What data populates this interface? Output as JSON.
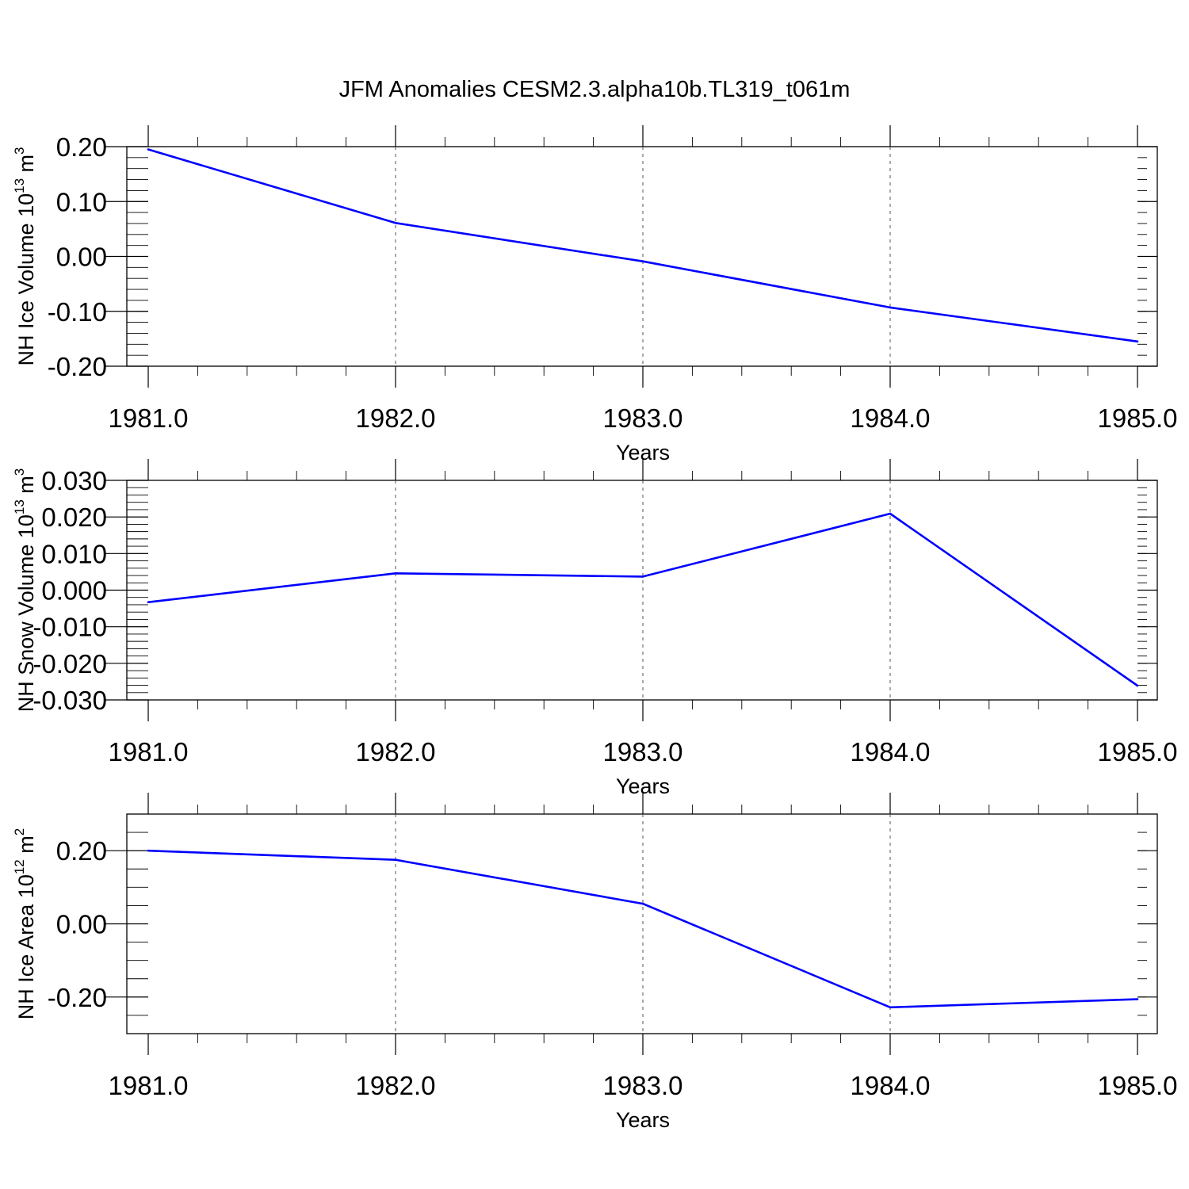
{
  "title": "JFM Anomalies CESM2.3.alpha10b.TL319_t061m",
  "chart_data": [
    {
      "type": "line",
      "xlabel": "Years",
      "ylabel": {
        "main": "NH Ice Volume 10",
        "exp": "13",
        "unit": " m",
        "unit_exp": "3"
      },
      "x": [
        1981.0,
        1982.0,
        1983.0,
        1984.0,
        1985.0
      ],
      "xlim": [
        1981.0,
        1985.0
      ],
      "xticks": [
        "1981.0",
        "1982.0",
        "1983.0",
        "1984.0",
        "1985.0"
      ],
      "ylim": [
        -0.2,
        0.2
      ],
      "yticks": [
        0.2,
        0.1,
        0.0,
        -0.1,
        -0.2
      ],
      "yticklabels": [
        "0.20",
        "0.10",
        "0.00",
        "-0.10",
        "-0.20"
      ],
      "series": [
        {
          "values": [
            0.195,
            0.061,
            -0.009,
            -0.093,
            -0.155
          ],
          "color": "#0000ff"
        }
      ],
      "grid": "x dashed"
    },
    {
      "type": "line",
      "xlabel": "Years",
      "ylabel": {
        "main": "NH Snow Volume 10",
        "exp": "13",
        "unit": " m",
        "unit_exp": "3"
      },
      "x": [
        1981.0,
        1982.0,
        1983.0,
        1984.0,
        1985.0
      ],
      "xlim": [
        1981.0,
        1985.0
      ],
      "xticks": [
        "1981.0",
        "1982.0",
        "1983.0",
        "1984.0",
        "1985.0"
      ],
      "ylim": [
        -0.03,
        0.03
      ],
      "yticks": [
        0.03,
        0.02,
        0.01,
        0.0,
        -0.01,
        -0.02,
        -0.03
      ],
      "yticklabels": [
        "0.030",
        "0.020",
        "0.010",
        "0.000",
        "-0.010",
        "-0.020",
        "-0.030"
      ],
      "series": [
        {
          "values": [
            -0.0033,
            0.0046,
            0.0037,
            0.0209,
            -0.0261
          ],
          "color": "#0000ff"
        }
      ],
      "grid": "x dashed"
    },
    {
      "type": "line",
      "xlabel": "Years",
      "ylabel": {
        "main": "NH Ice Area 10",
        "exp": "12",
        "unit": " m",
        "unit_exp": "2"
      },
      "x": [
        1981.0,
        1982.0,
        1983.0,
        1984.0,
        1985.0
      ],
      "xlim": [
        1981.0,
        1985.0
      ],
      "xticks": [
        "1981.0",
        "1982.0",
        "1983.0",
        "1984.0",
        "1985.0"
      ],
      "ylim": [
        -0.3,
        0.3
      ],
      "yticks": [
        0.2,
        0.0,
        -0.2
      ],
      "yticklabels": [
        "0.20",
        "0.00",
        "-0.20"
      ],
      "series": [
        {
          "values": [
            0.2,
            0.175,
            0.055,
            -0.228,
            -0.206
          ],
          "color": "#0000ff"
        }
      ],
      "grid": "x dashed"
    }
  ]
}
